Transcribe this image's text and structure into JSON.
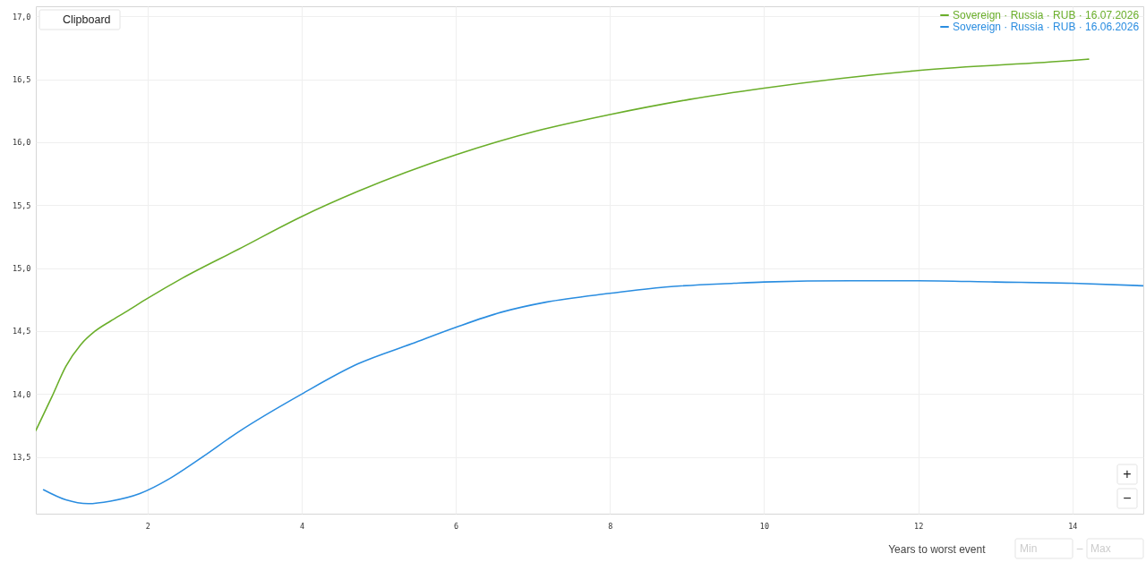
{
  "chart_data": {
    "type": "line",
    "xlabel": "Years to worst event",
    "annotations": [
      "Clipboard",
      "+",
      "−",
      "Min",
      "–",
      "Max"
    ],
    "xlim": [
      0.55,
      14.92
    ],
    "ylim": [
      13.05,
      17.08
    ],
    "xticks": [
      2,
      4,
      6,
      8,
      10,
      12,
      14
    ],
    "yticks": [
      {
        "value": 13.5,
        "label": "13,5"
      },
      {
        "value": 14,
        "label": "14,0"
      },
      {
        "value": 14.5,
        "label": "14,5"
      },
      {
        "value": 15,
        "label": "15,0"
      },
      {
        "value": 15.5,
        "label": "15,5"
      },
      {
        "value": 16,
        "label": "16,0"
      },
      {
        "value": 16.5,
        "label": "16,5"
      },
      {
        "value": 17,
        "label": "17,0"
      }
    ],
    "grid": true,
    "legend": "top right",
    "line_style": "solid",
    "series": [
      {
        "name": "Sovereign · Russia · RUB · 16.07.2026",
        "color": "#6aae2a",
        "x": [
          0.55,
          0.76,
          0.94,
          1.13,
          1.32,
          1.52,
          1.71,
          2.0,
          2.45,
          3.18,
          4.0,
          4.73,
          6.0,
          7.05,
          8.0,
          9.03,
          10.0,
          12.0,
          14.0,
          14.21
        ],
        "values": [
          13.71,
          13.98,
          14.22,
          14.39,
          14.5,
          14.58,
          14.65,
          14.76,
          14.92,
          15.15,
          15.41,
          15.61,
          15.9,
          16.09,
          16.22,
          16.34,
          16.43,
          16.57,
          16.65,
          16.66
        ]
      },
      {
        "name": "Sovereign · Russia · RUB · 16.06.2026",
        "color": "#2a8de0",
        "x": [
          0.65,
          0.94,
          1.23,
          1.52,
          1.9,
          2.29,
          2.64,
          3.18,
          4.0,
          4.73,
          5.43,
          6.0,
          6.59,
          7.17,
          8.0,
          8.72,
          9.61,
          10.0,
          11.12,
          12.0,
          13.0,
          14.0,
          14.92
        ],
        "values": [
          13.24,
          13.16,
          13.13,
          13.15,
          13.21,
          13.33,
          13.47,
          13.7,
          14.0,
          14.24,
          14.4,
          14.53,
          14.65,
          14.73,
          14.8,
          14.85,
          14.88,
          14.89,
          14.9,
          14.9,
          14.89,
          14.88,
          14.86
        ]
      }
    ]
  }
}
